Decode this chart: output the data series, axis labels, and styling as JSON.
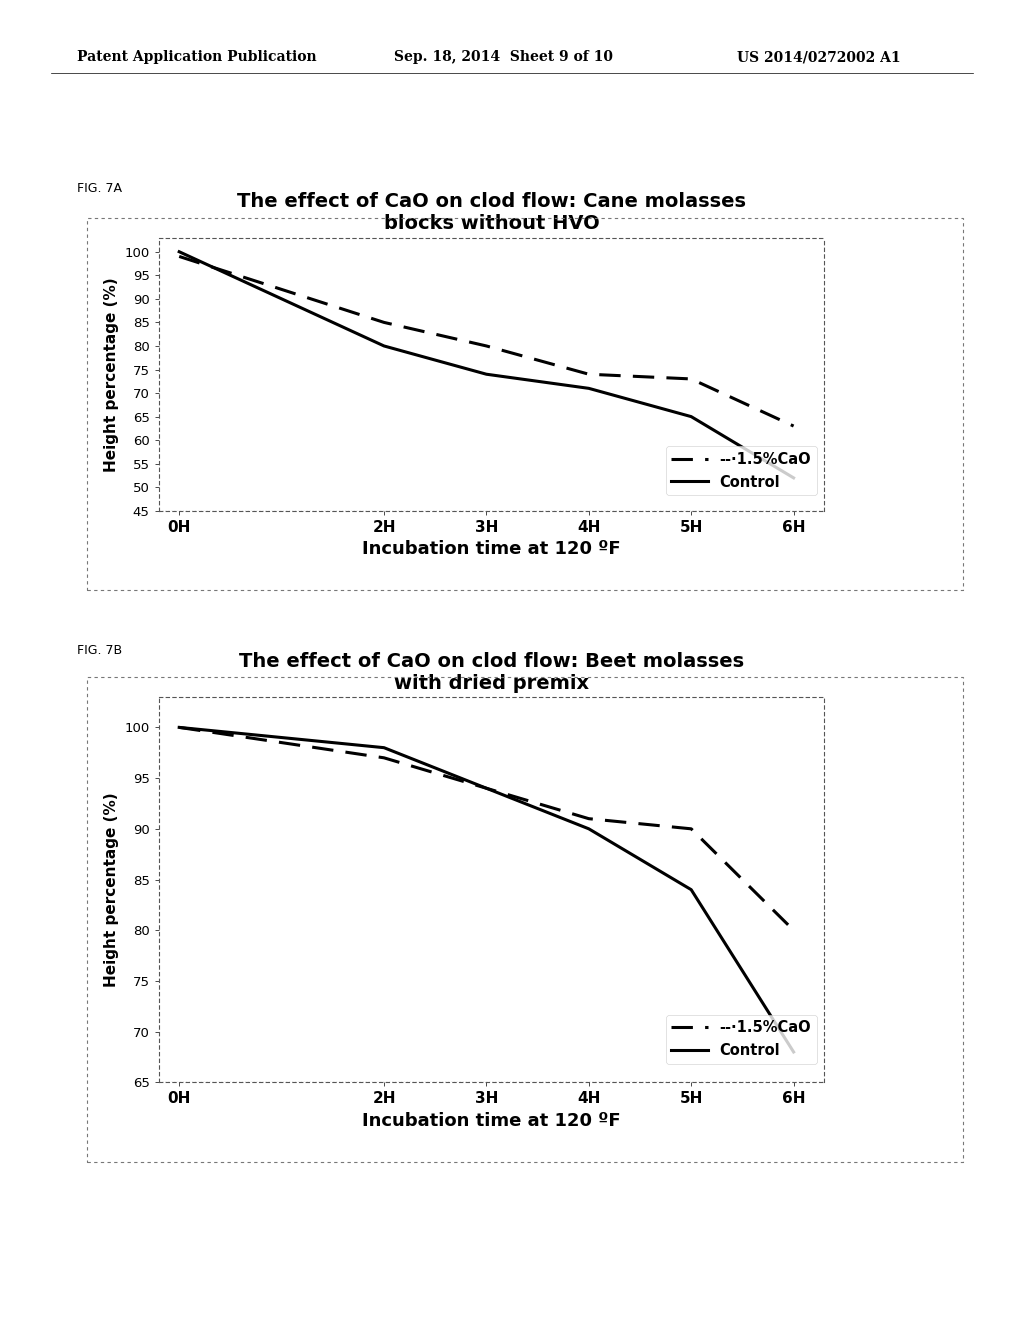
{
  "header_left": "Patent Application Publication",
  "header_center": "Sep. 18, 2014  Sheet 9 of 10",
  "header_right": "US 2014/0272002 A1",
  "fig7a_label": "FIG. 7A",
  "fig7a_title": "The effect of CaO on clod flow: Cane molasses\nblocks without HVO",
  "fig7a_xlabel": "Incubation time at 120 ºF",
  "fig7a_ylabel": "Height percentage (%)",
  "fig7a_xticks": [
    "0H",
    "2H",
    "3H",
    "4H",
    "5H",
    "6H"
  ],
  "fig7a_x": [
    0,
    2,
    3,
    4,
    5,
    6
  ],
  "fig7a_ylim": [
    45,
    103
  ],
  "fig7a_yticks": [
    45,
    50,
    55,
    60,
    65,
    70,
    75,
    80,
    85,
    90,
    95,
    100
  ],
  "fig7a_control": [
    100,
    80,
    74,
    71,
    65,
    52
  ],
  "fig7a_cao": [
    99,
    85,
    80,
    74,
    73,
    63
  ],
  "fig7b_label": "FIG. 7B",
  "fig7b_title": "The effect of CaO on clod flow: Beet molasses\nwith dried premix",
  "fig7b_xlabel": "Incubation time at 120 ºF",
  "fig7b_ylabel": "Height percentage (%)",
  "fig7b_xticks": [
    "0H",
    "2H",
    "3H",
    "4H",
    "5H",
    "6H"
  ],
  "fig7b_x": [
    0,
    2,
    3,
    4,
    5,
    6
  ],
  "fig7b_ylim": [
    65,
    103
  ],
  "fig7b_yticks": [
    65,
    70,
    75,
    80,
    85,
    90,
    95,
    100
  ],
  "fig7b_control": [
    100,
    98,
    94,
    90,
    84,
    68
  ],
  "fig7b_cao": [
    100,
    97,
    94,
    91,
    90,
    80
  ],
  "line_color": "#000000",
  "bg_color": "#ffffff",
  "legend_cao": "- - ·1.5%CaO",
  "legend_control": "—Control"
}
